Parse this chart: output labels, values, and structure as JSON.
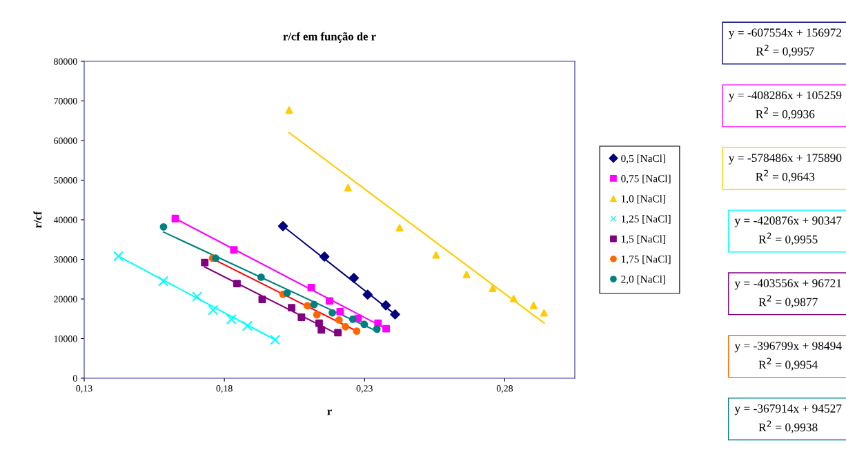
{
  "chart_data": {
    "type": "scatter",
    "title": "r/cf em função de r",
    "xlabel": "r",
    "ylabel": "r/cf",
    "xlim": [
      0.13,
      0.305
    ],
    "xticks": [
      {
        "value": 0.13,
        "label": "0,13"
      },
      {
        "value": 0.18,
        "label": "0,18"
      },
      {
        "value": 0.23,
        "label": "0,23"
      },
      {
        "value": 0.28,
        "label": "0,28"
      }
    ],
    "ylim": [
      0,
      80000
    ],
    "yticks": [
      0,
      10000,
      20000,
      30000,
      40000,
      50000,
      60000,
      70000,
      80000
    ],
    "grid": false,
    "legend": "right",
    "series": [
      {
        "name": "0,5 [NaCl]",
        "color": "#000080",
        "marker": "diamond",
        "x": [
          0.2009,
          0.2157,
          0.2262,
          0.2311,
          0.2376,
          0.2409
        ],
        "values": [
          38400,
          30700,
          25300,
          21100,
          18400,
          16100
        ]
      },
      {
        "name": "0,75 [NaCl]",
        "color": "#ff00ff",
        "marker": "square",
        "x": [
          0.1625,
          0.1834,
          0.211,
          0.2175,
          0.2213,
          0.2277,
          0.2348,
          0.2377
        ],
        "values": [
          40300,
          32400,
          22900,
          19500,
          16800,
          15100,
          13900,
          12500
        ]
      },
      {
        "name": "1,0 [NaCl]",
        "color": "#ffcc00",
        "marker": "triangle",
        "x": [
          0.2031,
          0.2241,
          0.2425,
          0.2555,
          0.2664,
          0.2757,
          0.2832,
          0.2903,
          0.294
        ],
        "values": [
          67700,
          48100,
          38000,
          31100,
          26200,
          22700,
          20100,
          18400,
          16500
        ]
      },
      {
        "name": "1,25 [NaCl]",
        "color": "#00ffff",
        "marker": "cross",
        "x": [
          0.1422,
          0.1582,
          0.1703,
          0.176,
          0.1825,
          0.1882,
          0.1981
        ],
        "values": [
          30800,
          24500,
          20600,
          17200,
          14900,
          13200,
          9700
        ]
      },
      {
        "name": "1,5 [NaCl]",
        "color": "#800080",
        "marker": "square",
        "x": [
          0.173,
          0.1845,
          0.1935,
          0.204,
          0.2075,
          0.2138,
          0.2146,
          0.2205
        ],
        "values": [
          29200,
          23900,
          19900,
          17800,
          15400,
          13900,
          12200,
          11500
        ]
      },
      {
        "name": "1,75 [NaCl]",
        "color": "#ff6600",
        "marker": "circle",
        "x": [
          0.1758,
          0.2009,
          0.2096,
          0.213,
          0.2209,
          0.2232,
          0.2272
        ],
        "values": [
          30300,
          21200,
          18300,
          16000,
          14700,
          13000,
          11900
        ]
      },
      {
        "name": "2,0 [NaCl]",
        "color": "#008080",
        "marker": "circle",
        "x": [
          0.1583,
          0.1769,
          0.1931,
          0.2024,
          0.212,
          0.2185,
          0.2258,
          0.2299,
          0.2344
        ],
        "values": [
          38200,
          30300,
          25500,
          21500,
          18600,
          16500,
          14900,
          13600,
          12400
        ]
      },
      {
        "type": "line",
        "color": "#000080",
        "x": [
          0.2009,
          0.2409
        ],
        "values": [
          38400,
          16100
        ]
      },
      {
        "type": "line",
        "color": "#ff00ff",
        "x": [
          0.1625,
          0.2366
        ],
        "values": [
          40300,
          12900
        ]
      },
      {
        "type": "line",
        "color": "#ffcc00",
        "x": [
          0.2031,
          0.2941
        ],
        "values": [
          62000,
          13900
        ]
      },
      {
        "type": "line",
        "color": "#00ffff",
        "x": [
          0.1422,
          0.1981
        ],
        "values": [
          30800,
          9700
        ]
      },
      {
        "type": "line",
        "color": "#800080",
        "x": [
          0.173,
          0.2205
        ],
        "values": [
          28100,
          11100
        ]
      },
      {
        "type": "line",
        "color": "#ff0000",
        "x": [
          0.1765,
          0.2272
        ],
        "values": [
          29900,
          11900
        ]
      },
      {
        "type": "line",
        "color": "#008080",
        "x": [
          0.1583,
          0.2349
        ],
        "values": [
          36900,
          11700
        ]
      }
    ],
    "annotations": [
      "y = -607554x + 156972\nR$^{2}$ = 0,9957",
      "y = -408286x + 105259\nR$^{2}$ = 0,9936",
      "y = -578486x + 175890\nR$^{2}$ = 0,9643",
      "y = -420876x + 90347\nR$^{2}$ = 0,9955",
      "y = -403556x + 96721\nR$^{2}$ = 0,9877",
      "y = -396799x + 98494\nR$^{2}$ = 0,9954",
      "y = -367914x + 94527\nR$^{2}$ = 0,9938"
    ]
  }
}
